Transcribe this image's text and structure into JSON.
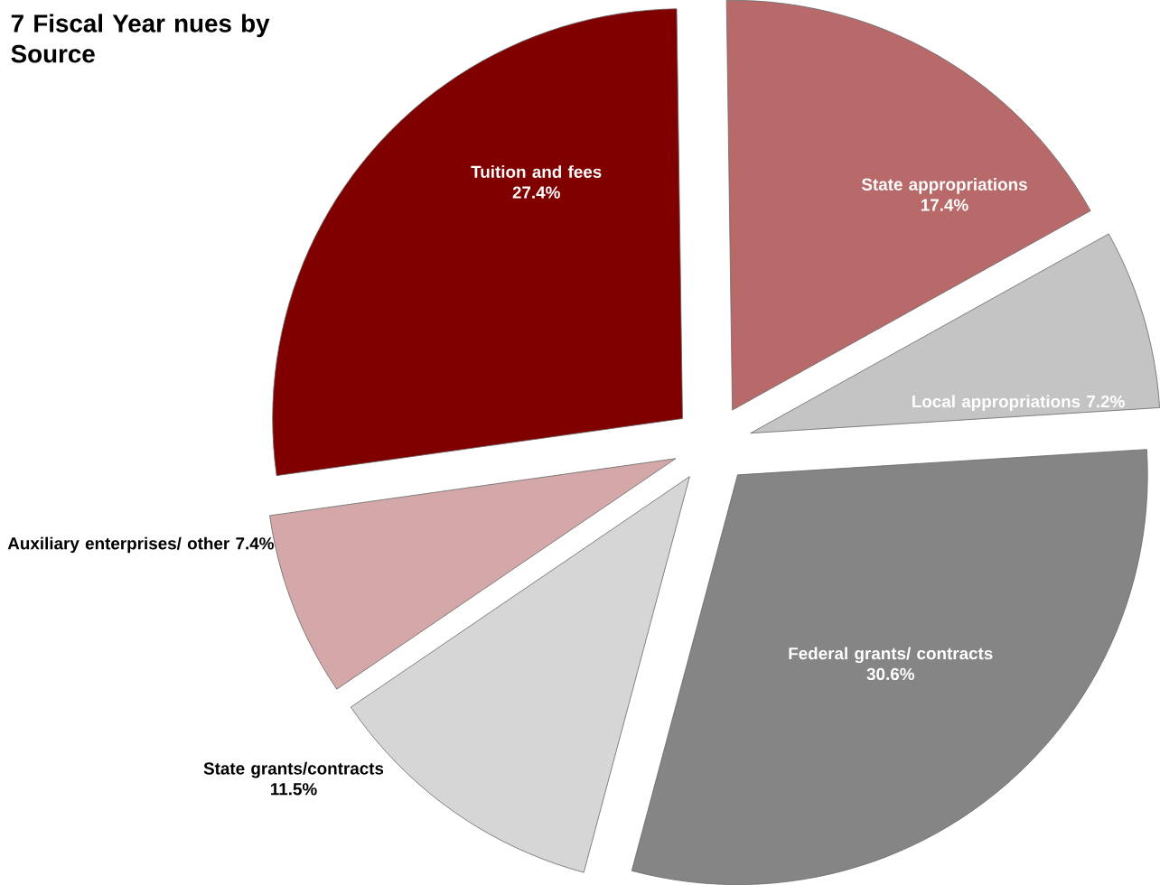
{
  "chart_data": {
    "type": "pie",
    "title": "7 Fiscal Year nues by Source",
    "categories": [
      "Tuition and fees",
      "State appropriations",
      "Local appropriations",
      "Federal grants/ contracts",
      "State grants/contracts",
      "Auxiliary enterprises/ other"
    ],
    "values": [
      27.4,
      17.4,
      7.2,
      30.6,
      11.5,
      7.4
    ],
    "value_labels": [
      "27.4%",
      "17.4%",
      "7.2%",
      "30.6%",
      "11.5%",
      "7.4%"
    ],
    "colors": [
      "#800000",
      "#b86a6a",
      "#c4c4c4",
      "#858585",
      "#d6d6d6",
      "#d4a8a8"
    ]
  }
}
